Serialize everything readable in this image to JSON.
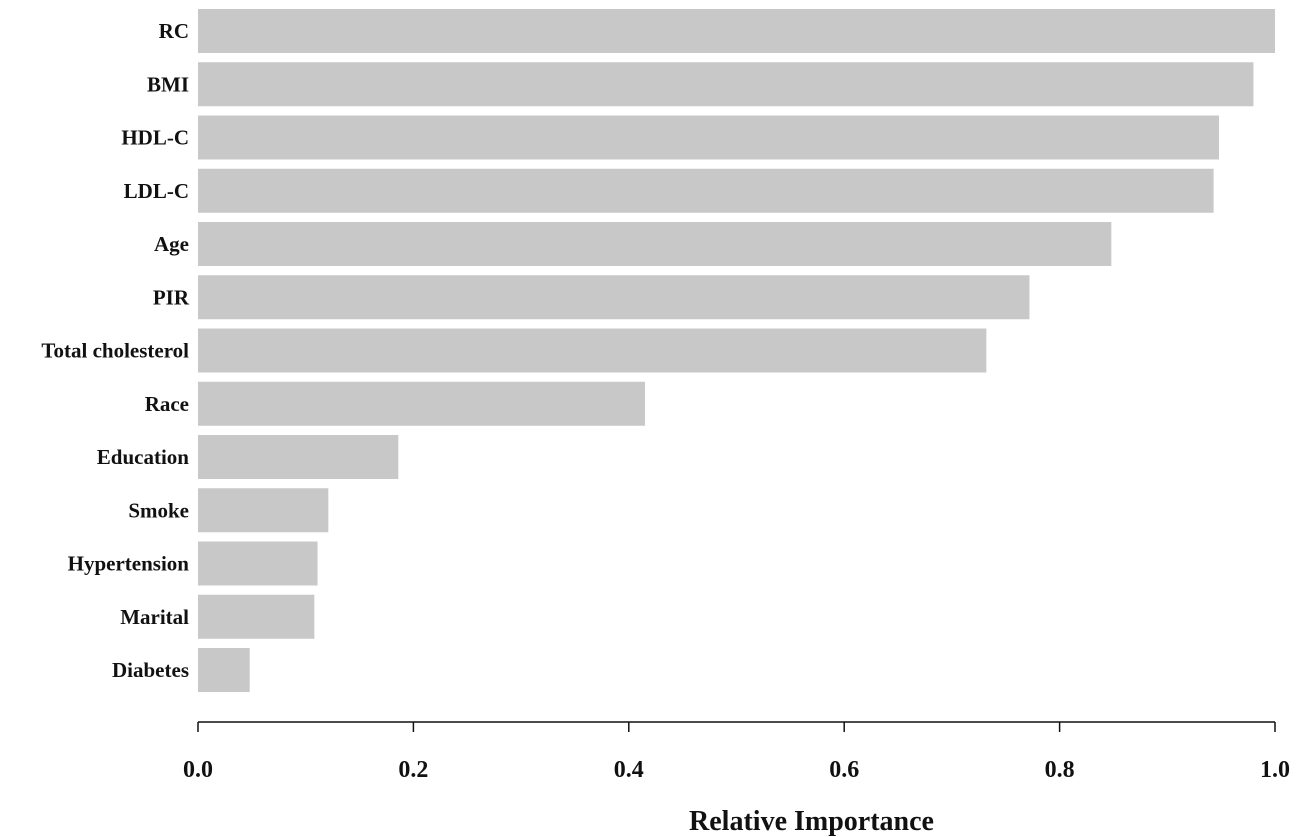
{
  "chart_data": {
    "type": "bar",
    "orientation": "horizontal",
    "categories": [
      "RC",
      "BMI",
      "HDL-C",
      "LDL-C",
      "Age",
      "PIR",
      "Total cholesterol",
      "Race",
      "Education",
      "Smoke",
      "Hypertension",
      "Marital",
      "Diabetes"
    ],
    "values": [
      1.0,
      0.98,
      0.948,
      0.943,
      0.848,
      0.772,
      0.732,
      0.415,
      0.186,
      0.121,
      0.111,
      0.108,
      0.048
    ],
    "xlabel": "Relative Importance",
    "ylabel": "",
    "xlim": [
      0.0,
      1.0
    ],
    "xticks": [
      "0.0",
      "0.2",
      "0.4",
      "0.6",
      "0.8",
      "1.0"
    ],
    "bar_color": "#c8c8c8",
    "grid": false,
    "legend": "none"
  }
}
